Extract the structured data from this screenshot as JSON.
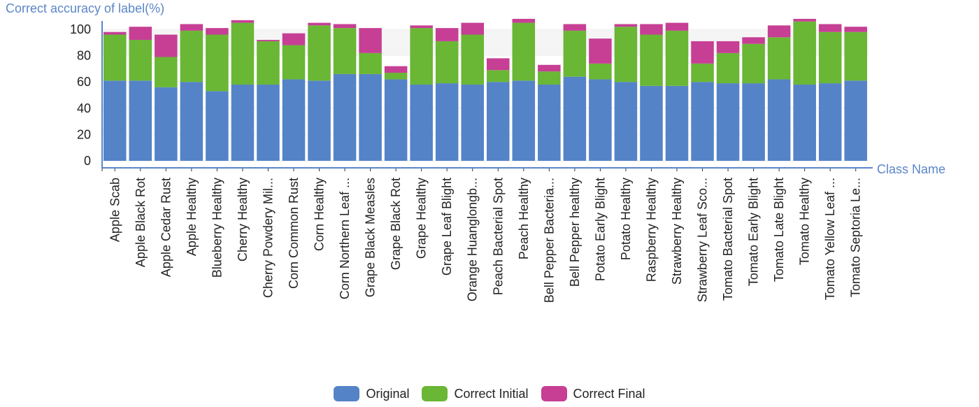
{
  "chart_data": {
    "type": "bar",
    "stacked": true,
    "ylabel": "Correct accuracy of label(%)",
    "xlabel": "Class Name",
    "ylim": [
      0,
      100
    ],
    "yticks": [
      0,
      20,
      40,
      60,
      80,
      100
    ],
    "grid": "horizontal",
    "legend_position": "bottom-center",
    "categories": [
      "Apple Scab",
      "Apple Black Rot",
      "Apple Cedar Rust",
      "Apple Healthy",
      "Blueberry Healthy",
      "Cherry Healthy",
      "Cherry Powdery Mil...",
      "Corn Common Rust",
      "Corn Healthy",
      "Corn Northern Leaf ...",
      "Grape Black Measles",
      "Grape Black Rot",
      "Grape Healthy",
      "Grape Leaf Blight",
      "Orange Huanglongb...",
      "Peach Bacterial Spot",
      "Peach Healthy",
      "Bell Pepper Bacteria...",
      "Bell Pepper healthy",
      "Potato Early Blight",
      "Potato Healthy",
      "Raspberry Healthy",
      "Strawberry Healthy",
      "Strawberry Leaf Sco...",
      "Tomato Bacterial Spot",
      "Tomato Early Blight",
      "Tomato Late Blight",
      "Tomato Healthy",
      "Tomato Yellow Leaf ...",
      "Tomato Septoria Le..."
    ],
    "series": [
      {
        "name": "Original",
        "color": "#5583c7",
        "values": [
          61,
          61,
          56,
          60,
          53,
          58,
          58,
          62,
          61,
          66,
          66,
          62,
          58,
          59,
          58,
          60,
          61,
          58,
          64,
          62,
          60,
          57,
          57,
          60,
          59,
          59,
          62,
          58,
          59,
          61
        ]
      },
      {
        "name": "Correct Initial",
        "color": "#6ab635",
        "values": [
          35,
          31,
          23,
          39,
          43,
          47,
          33,
          26,
          42,
          35,
          16,
          5,
          43,
          32,
          38,
          9,
          44,
          10,
          35,
          12,
          42,
          39,
          42,
          14,
          23,
          30,
          32,
          48,
          39,
          37
        ]
      },
      {
        "name": "Correct Final",
        "color": "#c63f94",
        "values": [
          2,
          10,
          17,
          5,
          5,
          2,
          1,
          9,
          2,
          3,
          19,
          5,
          2,
          10,
          9,
          9,
          3,
          5,
          5,
          19,
          2,
          8,
          6,
          17,
          9,
          5,
          9,
          2,
          6,
          4
        ]
      }
    ]
  }
}
